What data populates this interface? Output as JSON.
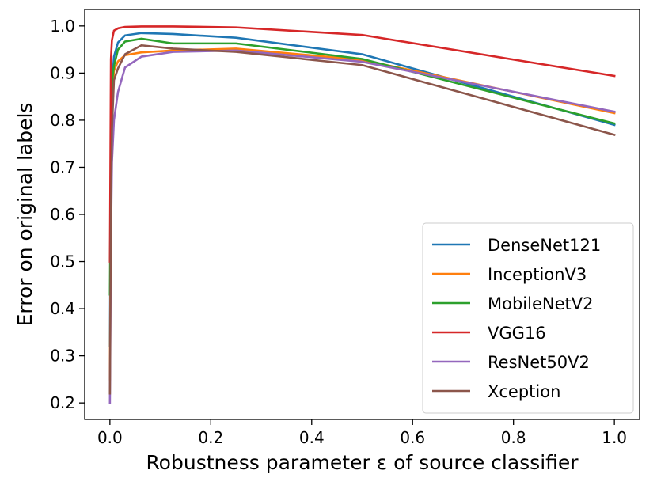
{
  "chart_data": {
    "type": "line",
    "xlabel": "Robustness parameter ε of source classifier",
    "ylabel": "Error on original labels",
    "xlim": [
      -0.05,
      1.05
    ],
    "ylim": [
      0.165,
      1.035
    ],
    "xticks": [
      0.0,
      0.2,
      0.4,
      0.6,
      0.8,
      1.0
    ],
    "xtick_labels": [
      "0.0",
      "0.2",
      "0.4",
      "0.6",
      "0.8",
      "1.0"
    ],
    "yticks": [
      0.2,
      0.3,
      0.4,
      0.5,
      0.6,
      0.7,
      0.8,
      0.9,
      1.0
    ],
    "ytick_labels": [
      "0.2",
      "0.3",
      "0.4",
      "0.5",
      "0.6",
      "0.7",
      "0.8",
      "0.9",
      "1.0"
    ],
    "grid": false,
    "legend_position": "lower-right",
    "x": [
      0.0,
      0.002,
      0.004,
      0.008,
      0.016,
      0.03,
      0.0625,
      0.125,
      0.25,
      0.5,
      1.0
    ],
    "series": [
      {
        "name": "DenseNet121",
        "color": "#1f77b4",
        "values": [
          0.32,
          0.75,
          0.87,
          0.935,
          0.965,
          0.98,
          0.985,
          0.983,
          0.975,
          0.94,
          0.79
        ]
      },
      {
        "name": "InceptionV3",
        "color": "#ff7f0e",
        "values": [
          0.25,
          0.7,
          0.84,
          0.905,
          0.925,
          0.938,
          0.944,
          0.948,
          0.952,
          0.928,
          0.815
        ]
      },
      {
        "name": "MobileNetV2",
        "color": "#2ca02c",
        "values": [
          0.43,
          0.78,
          0.88,
          0.915,
          0.95,
          0.967,
          0.973,
          0.963,
          0.963,
          0.93,
          0.793
        ]
      },
      {
        "name": "VGG16",
        "color": "#d62728",
        "values": [
          0.5,
          0.93,
          0.97,
          0.99,
          0.995,
          0.998,
          0.999,
          0.999,
          0.997,
          0.981,
          0.894
        ]
      },
      {
        "name": "ResNet50V2",
        "color": "#9467bd",
        "values": [
          0.2,
          0.54,
          0.71,
          0.8,
          0.86,
          0.912,
          0.935,
          0.945,
          0.948,
          0.924,
          0.818
        ]
      },
      {
        "name": "Xception",
        "color": "#8c564b",
        "values": [
          0.22,
          0.6,
          0.78,
          0.885,
          0.91,
          0.94,
          0.959,
          0.952,
          0.945,
          0.917,
          0.769
        ]
      }
    ]
  }
}
